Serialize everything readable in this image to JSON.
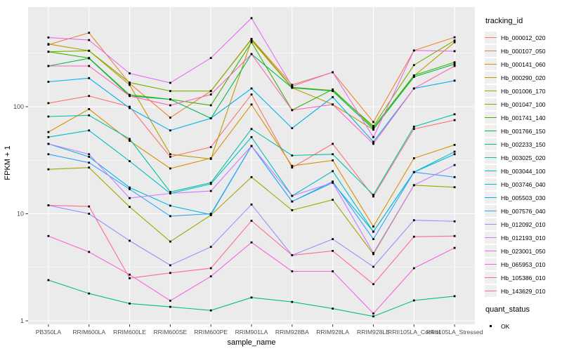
{
  "chart_data": {
    "type": "line",
    "title": "",
    "xlabel": "sample_name",
    "ylabel": "FPKM + 1",
    "y_scale": "log10",
    "ylim": [
      0.93,
      850
    ],
    "y_major_ticks": [
      1,
      10,
      100
    ],
    "y_minor_gridlines": [
      3.162,
      31.62,
      316.2
    ],
    "grid": "on",
    "panel_background": "#EBEBEB",
    "gridline_color": "#FFFFFF",
    "tick_label_color": "#4D4D4D",
    "point_shape": "filled-black-square",
    "legend_position": "right",
    "categories": [
      "PB350LA",
      "RRIM600LA",
      "RRIM600LE",
      "RRIM600SE",
      "RRIM600PE",
      "RRIM901LA",
      "RRIM928BA",
      "RRIM928LA",
      "RRIM928LE",
      "RRII105LA_Control",
      "RRII105LA_Stressed"
    ],
    "series": [
      {
        "name": "Hb_000012_020",
        "color": "#F8766D",
        "values": [
          108,
          126,
          100,
          34,
          42,
          130,
          27,
          45,
          14.5,
          62,
          75
        ]
      },
      {
        "name": "Hb_000107_050",
        "color": "#EA8331",
        "values": [
          380,
          490,
          165,
          79,
          140,
          430,
          160,
          210,
          72,
          335,
          445
        ]
      },
      {
        "name": "Hb_000141_060",
        "color": "#D89000",
        "values": [
          58,
          95,
          48,
          26.5,
          33,
          105,
          28,
          31.5,
          7.6,
          33,
          44
        ]
      },
      {
        "name": "Hb_000290_020",
        "color": "#C09B00",
        "values": [
          385,
          333,
          160,
          36,
          32.5,
          415,
          150,
          105,
          61,
          194,
          400
        ]
      },
      {
        "name": "Hb_001006_170",
        "color": "#A3A500",
        "values": [
          26,
          27,
          11.6,
          5.5,
          9.7,
          22,
          10.8,
          13.5,
          4.2,
          18.5,
          17.7
        ]
      },
      {
        "name": "Hb_001047_100",
        "color": "#7CAE00",
        "values": [
          326,
          333,
          168,
          140,
          140,
          425,
          152,
          142,
          66,
          245,
          415
        ]
      },
      {
        "name": "Hb_001741_140",
        "color": "#39B600",
        "values": [
          326,
          285,
          129,
          117,
          103,
          400,
          93,
          145,
          64,
          196,
          260
        ]
      },
      {
        "name": "Hb_001766_150",
        "color": "#00BB4E",
        "values": [
          240,
          283,
          126,
          117,
          78,
          310,
          150,
          140,
          62,
          190,
          250
        ]
      },
      {
        "name": "Hb_002233_150",
        "color": "#00BF7D",
        "values": [
          2.4,
          1.8,
          1.45,
          1.35,
          1.25,
          1.65,
          1.5,
          1.3,
          1.1,
          1.55,
          1.7
        ]
      },
      {
        "name": "Hb_003025_020",
        "color": "#00C1A3",
        "values": [
          81,
          83,
          50,
          16,
          19.5,
          62,
          35,
          36,
          15,
          65,
          85
        ]
      },
      {
        "name": "Hb_003044_100",
        "color": "#00BFC4",
        "values": [
          52,
          60,
          31,
          15.5,
          19,
          52,
          14.7,
          25,
          6.8,
          24.5,
          38
        ]
      },
      {
        "name": "Hb_003746_040",
        "color": "#00BAE0",
        "values": [
          45,
          34,
          17.6,
          11.9,
          9.8,
          43,
          13,
          19.5,
          6.8,
          24.5,
          36
        ]
      },
      {
        "name": "Hb_005503_030",
        "color": "#00B0F6",
        "values": [
          171,
          185,
          97,
          60,
          78,
          148,
          63,
          123,
          47,
          148,
          175
        ]
      },
      {
        "name": "Hb_007576_040",
        "color": "#35A2FF",
        "values": [
          36,
          30,
          17,
          9.5,
          10,
          43,
          13,
          20,
          5.8,
          24.5,
          22
        ]
      },
      {
        "name": "Hb_012092_010",
        "color": "#9590FF",
        "values": [
          12,
          10,
          5.6,
          3.3,
          4.9,
          12.2,
          4.1,
          5.8,
          3.2,
          8.7,
          8.5
        ]
      },
      {
        "name": "Hb_012193_010",
        "color": "#C77CFF",
        "values": [
          45,
          36,
          14,
          15.5,
          16.3,
          43,
          14.7,
          19.5,
          4.3,
          18.5,
          28.5
        ]
      },
      {
        "name": "Hb_023001_050",
        "color": "#E76BF3",
        "values": [
          443,
          419,
          205,
          167,
          285,
          672,
          155,
          210,
          52,
          335,
          330
        ]
      },
      {
        "name": "Hb_065953_010",
        "color": "#FA62DB",
        "values": [
          6.2,
          4.4,
          2.7,
          1.54,
          2.6,
          5.4,
          2.9,
          2.9,
          1.17,
          3.1,
          4.8
        ]
      },
      {
        "name": "Hb_105386_010",
        "color": "#FF62BC",
        "values": [
          240,
          240,
          126,
          103,
          130,
          310,
          93,
          105,
          45,
          148,
          240
        ]
      },
      {
        "name": "Hb_143629_010",
        "color": "#FF6A98",
        "values": [
          12,
          11.7,
          2.5,
          2.8,
          3.1,
          8.6,
          4.1,
          4.5,
          2.2,
          6.1,
          6.2
        ]
      }
    ],
    "legend": {
      "tracking_title": "tracking_id",
      "quant_title": "quant_status",
      "quant_items": [
        {
          "label": "OK"
        }
      ]
    },
    "y_tick_labels": [
      "1",
      "10",
      "100"
    ]
  }
}
